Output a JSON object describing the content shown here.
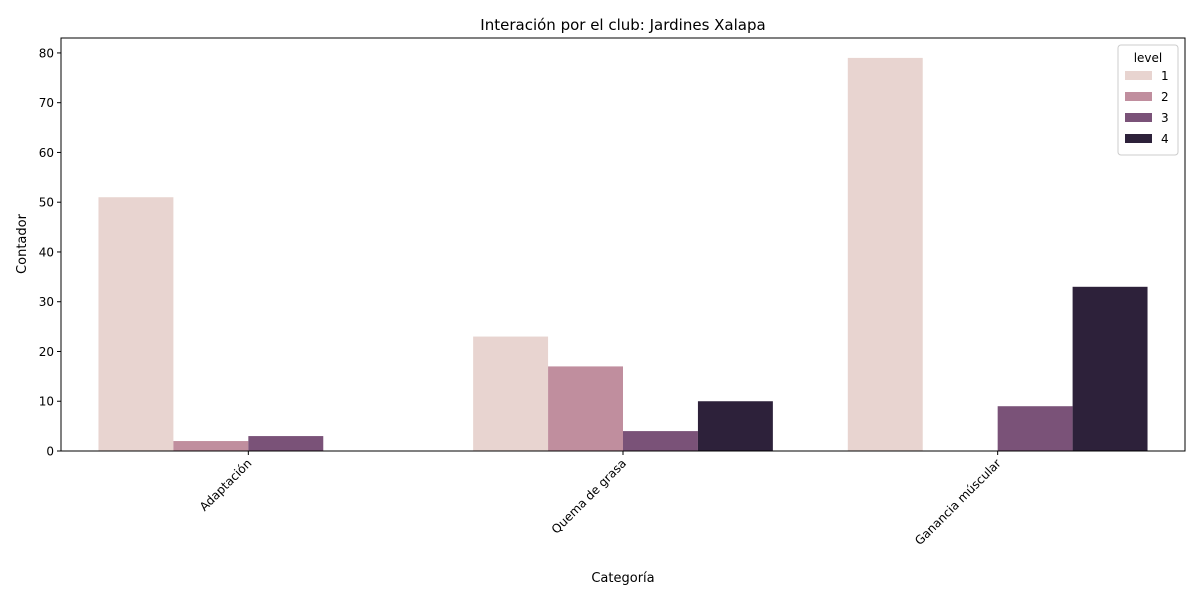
{
  "chart_data": {
    "type": "bar",
    "title": "Interación por el club: Jardines Xalapa",
    "xlabel": "Categoría",
    "ylabel": "Contador",
    "categories": [
      "Adaptación",
      "Quema de grasa",
      "Ganancia múscular"
    ],
    "series": [
      {
        "name": "1",
        "color": "#e8d4d0",
        "values": [
          51,
          23,
          79
        ]
      },
      {
        "name": "2",
        "color": "#c08e9e",
        "values": [
          2,
          17,
          null
        ]
      },
      {
        "name": "3",
        "color": "#7a5278",
        "values": [
          3,
          4,
          9
        ]
      },
      {
        "name": "4",
        "color": "#2d213a",
        "values": [
          null,
          10,
          33
        ]
      }
    ],
    "ylim": [
      0,
      83
    ],
    "yticks": [
      0,
      10,
      20,
      30,
      40,
      50,
      60,
      70,
      80
    ],
    "grid": false,
    "legend": {
      "title": "level",
      "placement": "top-right"
    }
  }
}
